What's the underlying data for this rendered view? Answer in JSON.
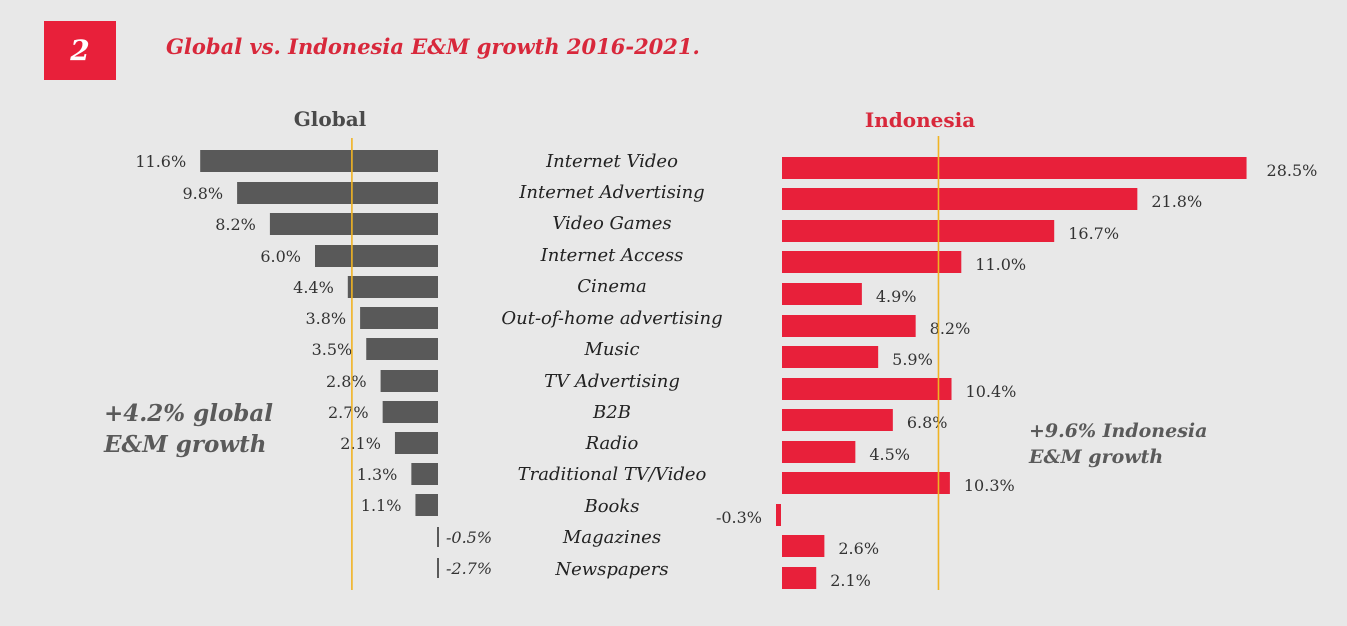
{
  "figure": {
    "number": "2",
    "title": "Global vs. Indonesia E&M growth 2016-2021."
  },
  "colors": {
    "global_bar": "#595959",
    "indonesia_bar": "#e8203a",
    "reference_line": "#f0b323",
    "background": "#e8e8e8"
  },
  "annotations": {
    "global": "+4.2% global\nE&M growth",
    "indonesia": "+9.6% Indonesia\nE&M growth"
  },
  "chart_data": [
    {
      "type": "bar",
      "orientation": "horizontal",
      "title": "Global",
      "categories": [
        "Internet Video",
        "Internet Advertising",
        "Video Games",
        "Internet Access",
        "Cinema",
        "Out-of-home advertising",
        "Music",
        "TV Advertising",
        "B2B",
        "Radio",
        "Traditional TV/Video",
        "Books",
        "Magazines",
        "Newspapers"
      ],
      "values": [
        11.6,
        9.8,
        8.2,
        6.0,
        4.4,
        3.8,
        3.5,
        2.8,
        2.7,
        2.1,
        1.3,
        1.1,
        -0.5,
        -2.7
      ],
      "labels": [
        "11.6%",
        "9.8%",
        "8.2%",
        "6.0%",
        "4.4%",
        "3.8%",
        "3.5%",
        "2.8%",
        "2.7%",
        "2.1%",
        "1.3%",
        "1.1%",
        "-0.5%",
        "-2.7%"
      ],
      "reference_line": 4.2,
      "direction": "leftward"
    },
    {
      "type": "bar",
      "orientation": "horizontal",
      "title": "Indonesia",
      "categories": [
        "Internet Video",
        "Internet Advertising",
        "Video Games",
        "Internet Access",
        "Cinema",
        "Out-of-home advertising",
        "Music",
        "TV Advertising",
        "B2B",
        "Radio",
        "Traditional TV/Video",
        "Books",
        "Magazines",
        "Newspapers"
      ],
      "values": [
        28.5,
        21.8,
        16.7,
        11.0,
        4.9,
        8.2,
        5.9,
        10.4,
        6.8,
        4.5,
        10.3,
        -0.3,
        2.6,
        2.1
      ],
      "labels": [
        "28.5%",
        "21.8%",
        "16.7%",
        "11.0%",
        "4.9%",
        "8.2%",
        "5.9%",
        "10.4%",
        "6.8%",
        "4.5%",
        "10.3%",
        "-0.3%",
        "2.6%",
        "2.1%"
      ],
      "reference_line": 9.6,
      "direction": "rightward"
    }
  ]
}
